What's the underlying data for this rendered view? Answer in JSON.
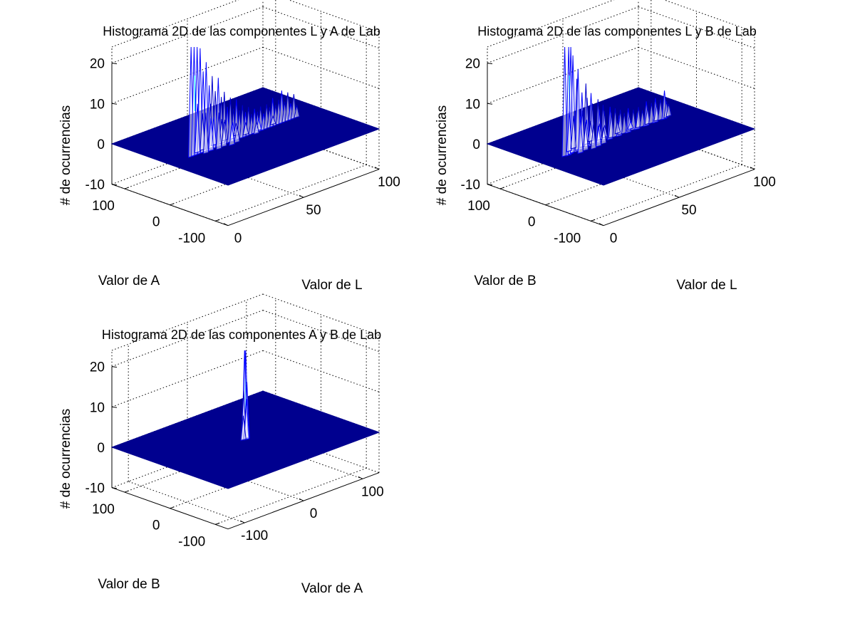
{
  "figure": {
    "background": "#ffffff"
  },
  "chart_data": [
    {
      "type": "surface",
      "title": "Histograma 2D de las componentes L y A de Lab",
      "xlabel": "Valor de L",
      "ylabel": "Valor de A",
      "zlabel": "# de ocurrencias",
      "xlim": [
        0,
        100
      ],
      "ylim": [
        -128,
        128
      ],
      "zlim": [
        -10,
        20
      ],
      "xticks": [
        {
          "value": 0,
          "label": "0"
        },
        {
          "value": 50,
          "label": "50"
        },
        {
          "value": 100,
          "label": "100"
        }
      ],
      "yticks": [
        {
          "value": -100,
          "label": "-100"
        },
        {
          "value": 0,
          "label": "0"
        },
        {
          "value": 100,
          "label": "100"
        }
      ],
      "zticks": [
        {
          "value": -10,
          "label": "-10"
        },
        {
          "value": 0,
          "label": "0"
        },
        {
          "value": 10,
          "label": "10"
        },
        {
          "value": 20,
          "label": "20"
        }
      ],
      "grid": true,
      "colormap": [
        "#00008f",
        "#0000ff",
        "#00ffff"
      ],
      "floor_color": "#00008f",
      "baseline": 0,
      "peaks": [
        {
          "x": 14,
          "y": 0,
          "z": 32
        },
        {
          "x": 16,
          "y": 0,
          "z": 28
        },
        {
          "x": 18,
          "y": 0,
          "z": 30
        },
        {
          "x": 20,
          "y": 0,
          "z": 26
        },
        {
          "x": 22,
          "y": 0,
          "z": 20
        },
        {
          "x": 24,
          "y": 0,
          "z": 22
        },
        {
          "x": 26,
          "y": 0,
          "z": 16
        },
        {
          "x": 28,
          "y": 0,
          "z": 18
        },
        {
          "x": 30,
          "y": 0,
          "z": 14
        },
        {
          "x": 32,
          "y": 0,
          "z": 17
        },
        {
          "x": 34,
          "y": 0,
          "z": 12
        },
        {
          "x": 36,
          "y": 0,
          "z": 13
        },
        {
          "x": 38,
          "y": 0,
          "z": 9
        },
        {
          "x": 40,
          "y": 0,
          "z": 11
        },
        {
          "x": 42,
          "y": 0,
          "z": 8
        },
        {
          "x": 44,
          "y": 0,
          "z": 10
        },
        {
          "x": 46,
          "y": 0,
          "z": 7
        },
        {
          "x": 48,
          "y": 0,
          "z": 8
        },
        {
          "x": 50,
          "y": 0,
          "z": 6
        },
        {
          "x": 52,
          "y": 0,
          "z": 7
        },
        {
          "x": 54,
          "y": 0,
          "z": 5
        },
        {
          "x": 56,
          "y": 0,
          "z": 6
        },
        {
          "x": 58,
          "y": 0,
          "z": 5
        },
        {
          "x": 60,
          "y": 0,
          "z": 6
        },
        {
          "x": 62,
          "y": 0,
          "z": 4
        },
        {
          "x": 64,
          "y": 0,
          "z": 6
        },
        {
          "x": 66,
          "y": 0,
          "z": 5
        },
        {
          "x": 68,
          "y": 0,
          "z": 7
        },
        {
          "x": 70,
          "y": 0,
          "z": 5
        },
        {
          "x": 72,
          "y": 0,
          "z": 6
        },
        {
          "x": 74,
          "y": 0,
          "z": 8
        },
        {
          "x": 76,
          "y": 0,
          "z": 5
        },
        {
          "x": 78,
          "y": 0,
          "z": 7
        },
        {
          "x": 80,
          "y": 0,
          "z": 4
        },
        {
          "x": 82,
          "y": 0,
          "z": 6
        },
        {
          "x": 84,
          "y": 0,
          "z": 3
        },
        {
          "x": 20,
          "y": 6,
          "z": 12
        },
        {
          "x": 24,
          "y": 8,
          "z": 9
        },
        {
          "x": 28,
          "y": 4,
          "z": 11
        },
        {
          "x": 32,
          "y": 10,
          "z": 7
        },
        {
          "x": 36,
          "y": 6,
          "z": 6
        },
        {
          "x": 40,
          "y": 12,
          "z": 5
        },
        {
          "x": 44,
          "y": 8,
          "z": 4
        },
        {
          "x": 48,
          "y": 14,
          "z": 3
        },
        {
          "x": 22,
          "y": -6,
          "z": 10
        },
        {
          "x": 26,
          "y": -4,
          "z": 8
        },
        {
          "x": 30,
          "y": -8,
          "z": 9
        },
        {
          "x": 34,
          "y": -6,
          "z": 6
        },
        {
          "x": 38,
          "y": -10,
          "z": 5
        },
        {
          "x": 42,
          "y": -8,
          "z": 4
        },
        {
          "x": 52,
          "y": 6,
          "z": 3
        },
        {
          "x": 60,
          "y": 4,
          "z": 3
        },
        {
          "x": 70,
          "y": 6,
          "z": 2
        },
        {
          "x": 56,
          "y": -4,
          "z": 3
        }
      ]
    },
    {
      "type": "surface",
      "title": "Histograma 2D de las componentes L y B de Lab",
      "xlabel": "Valor de L",
      "ylabel": "Valor de B",
      "zlabel": "# de ocurrencias",
      "xlim": [
        0,
        100
      ],
      "ylim": [
        -128,
        128
      ],
      "zlim": [
        -10,
        20
      ],
      "xticks": [
        {
          "value": 0,
          "label": "0"
        },
        {
          "value": 50,
          "label": "50"
        },
        {
          "value": 100,
          "label": "100"
        }
      ],
      "yticks": [
        {
          "value": -100,
          "label": "-100"
        },
        {
          "value": 0,
          "label": "0"
        },
        {
          "value": 100,
          "label": "100"
        }
      ],
      "zticks": [
        {
          "value": -10,
          "label": "-10"
        },
        {
          "value": 0,
          "label": "0"
        },
        {
          "value": 10,
          "label": "10"
        },
        {
          "value": 20,
          "label": "20"
        }
      ],
      "grid": true,
      "colormap": [
        "#00008f",
        "#0000ff",
        "#00ffff"
      ],
      "floor_color": "#00008f",
      "baseline": 0,
      "peaks": [
        {
          "x": 14,
          "y": 4,
          "z": 32
        },
        {
          "x": 16,
          "y": 2,
          "z": 30
        },
        {
          "x": 18,
          "y": 4,
          "z": 28
        },
        {
          "x": 20,
          "y": 6,
          "z": 24
        },
        {
          "x": 22,
          "y": 4,
          "z": 18
        },
        {
          "x": 24,
          "y": 8,
          "z": 20
        },
        {
          "x": 26,
          "y": 6,
          "z": 14
        },
        {
          "x": 28,
          "y": 4,
          "z": 16
        },
        {
          "x": 30,
          "y": 8,
          "z": 12
        },
        {
          "x": 32,
          "y": 6,
          "z": 13
        },
        {
          "x": 34,
          "y": 10,
          "z": 10
        },
        {
          "x": 36,
          "y": 4,
          "z": 11
        },
        {
          "x": 38,
          "y": 8,
          "z": 8
        },
        {
          "x": 40,
          "y": 6,
          "z": 9
        },
        {
          "x": 42,
          "y": 10,
          "z": 7
        },
        {
          "x": 44,
          "y": 4,
          "z": 8
        },
        {
          "x": 46,
          "y": 8,
          "z": 6
        },
        {
          "x": 48,
          "y": 6,
          "z": 7
        },
        {
          "x": 50,
          "y": 4,
          "z": 5
        },
        {
          "x": 52,
          "y": 8,
          "z": 6
        },
        {
          "x": 54,
          "y": 6,
          "z": 5
        },
        {
          "x": 56,
          "y": 4,
          "z": 6
        },
        {
          "x": 58,
          "y": 8,
          "z": 4
        },
        {
          "x": 60,
          "y": 6,
          "z": 5
        },
        {
          "x": 62,
          "y": 4,
          "z": 4
        },
        {
          "x": 64,
          "y": 8,
          "z": 5
        },
        {
          "x": 66,
          "y": 6,
          "z": 4
        },
        {
          "x": 68,
          "y": 4,
          "z": 6
        },
        {
          "x": 70,
          "y": 8,
          "z": 4
        },
        {
          "x": 72,
          "y": 6,
          "z": 5
        },
        {
          "x": 74,
          "y": 4,
          "z": 6
        },
        {
          "x": 76,
          "y": 8,
          "z": 4
        },
        {
          "x": 78,
          "y": 6,
          "z": 5
        },
        {
          "x": 80,
          "y": 4,
          "z": 7
        },
        {
          "x": 82,
          "y": 6,
          "z": 4
        },
        {
          "x": 84,
          "y": 8,
          "z": 3
        },
        {
          "x": 20,
          "y": 14,
          "z": 10
        },
        {
          "x": 24,
          "y": 18,
          "z": 8
        },
        {
          "x": 28,
          "y": 12,
          "z": 9
        },
        {
          "x": 32,
          "y": 16,
          "z": 6
        },
        {
          "x": 36,
          "y": 20,
          "z": 5
        },
        {
          "x": 40,
          "y": 14,
          "z": 4
        },
        {
          "x": 22,
          "y": -4,
          "z": 9
        },
        {
          "x": 26,
          "y": -2,
          "z": 7
        },
        {
          "x": 30,
          "y": -6,
          "z": 6
        },
        {
          "x": 34,
          "y": -4,
          "z": 5
        },
        {
          "x": 44,
          "y": 16,
          "z": 3
        },
        {
          "x": 52,
          "y": 14,
          "z": 3
        },
        {
          "x": 60,
          "y": 12,
          "z": 2
        },
        {
          "x": 38,
          "y": -2,
          "z": 4
        }
      ]
    },
    {
      "type": "surface",
      "title": "Histograma 2D de las componentes A y B de Lab",
      "xlabel": "Valor de A",
      "ylabel": "Valor de B",
      "zlabel": "# de ocurrencias",
      "xlim": [
        -128,
        128
      ],
      "ylim": [
        -128,
        128
      ],
      "zlim": [
        -10,
        20
      ],
      "xticks": [
        {
          "value": -100,
          "label": "-100"
        },
        {
          "value": 0,
          "label": "0"
        },
        {
          "value": 100,
          "label": "100"
        }
      ],
      "yticks": [
        {
          "value": -100,
          "label": "-100"
        },
        {
          "value": 0,
          "label": "0"
        },
        {
          "value": 100,
          "label": "100"
        }
      ],
      "zticks": [
        {
          "value": -10,
          "label": "-10"
        },
        {
          "value": 0,
          "label": "0"
        },
        {
          "value": 10,
          "label": "10"
        },
        {
          "value": 20,
          "label": "20"
        }
      ],
      "grid": true,
      "colormap": [
        "#00008f",
        "#0000ff",
        "#00ffff"
      ],
      "floor_color": "#00008f",
      "baseline": 0,
      "peaks": [
        {
          "x": 2,
          "y": 2,
          "z": 32
        },
        {
          "x": 0,
          "y": 2,
          "z": 30
        },
        {
          "x": 2,
          "y": 4,
          "z": 26
        },
        {
          "x": 4,
          "y": 2,
          "z": 14
        },
        {
          "x": 0,
          "y": 4,
          "z": 12
        },
        {
          "x": 4,
          "y": 4,
          "z": 8
        },
        {
          "x": 2,
          "y": 0,
          "z": 10
        },
        {
          "x": -2,
          "y": 2,
          "z": 6
        }
      ]
    }
  ]
}
